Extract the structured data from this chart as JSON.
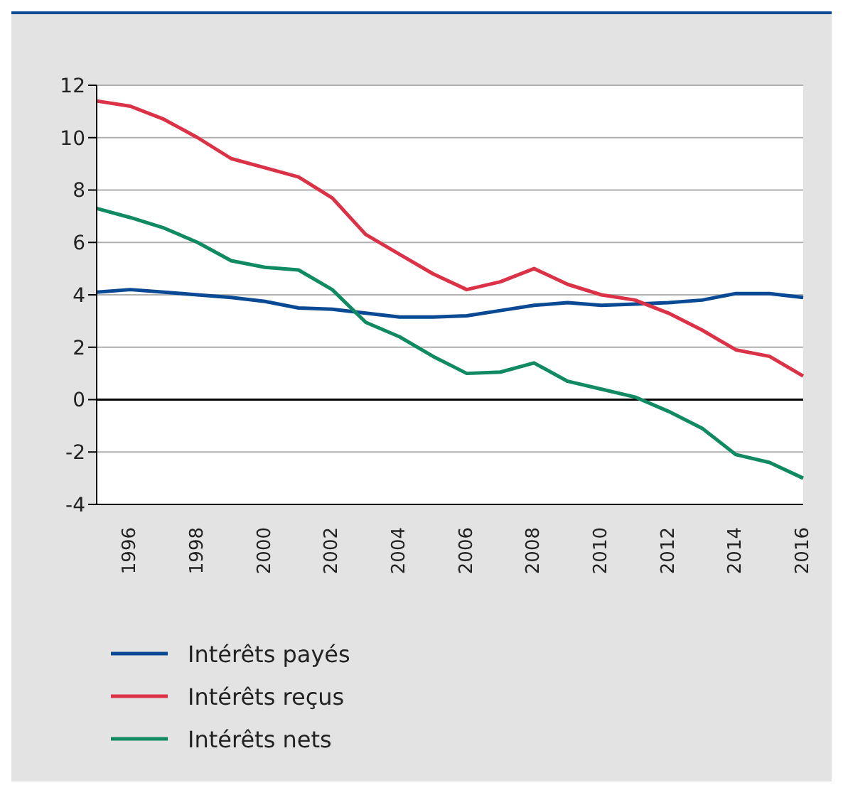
{
  "chart_data": {
    "type": "line",
    "categories": [
      null,
      "1996",
      null,
      "1998",
      null,
      "2000",
      null,
      "2002",
      null,
      "2004",
      null,
      "2006",
      null,
      "2008",
      null,
      "2010",
      null,
      "2012",
      null,
      "2014",
      null,
      "2016"
    ],
    "series": [
      {
        "name": "Intérêts payés",
        "color": "#0a4a94",
        "values": [
          4.1,
          4.2,
          4.1,
          4.0,
          3.9,
          3.75,
          3.5,
          3.45,
          3.3,
          3.15,
          3.15,
          3.2,
          3.4,
          3.6,
          3.7,
          3.6,
          3.65,
          3.7,
          3.8,
          4.05,
          4.05,
          3.9
        ]
      },
      {
        "name": "Intérêts reçus",
        "color": "#dc3248",
        "values": [
          11.4,
          11.2,
          10.7,
          10.0,
          9.2,
          8.85,
          8.5,
          7.7,
          6.3,
          5.55,
          4.8,
          4.2,
          4.5,
          5.0,
          4.4,
          4.0,
          3.8,
          3.3,
          2.65,
          1.9,
          1.65,
          0.9
        ]
      },
      {
        "name": "Intérêts nets",
        "color": "#0f8a62",
        "values": [
          7.3,
          6.95,
          6.55,
          6.0,
          5.3,
          5.05,
          4.95,
          4.2,
          2.95,
          2.4,
          1.65,
          1.0,
          1.05,
          1.4,
          0.7,
          0.4,
          0.1,
          -0.45,
          -1.1,
          -2.1,
          -2.4,
          -3.0
        ]
      }
    ],
    "ylim": [
      -4,
      12
    ],
    "yticks": [
      -4,
      -2,
      0,
      2,
      4,
      6,
      8,
      10,
      12
    ],
    "grid": "y",
    "legend": "bottom left",
    "marker": "none",
    "line_style": "solid",
    "ref_lines": [
      {
        "axis": "y",
        "value": 0,
        "color": "#000000"
      }
    ]
  }
}
